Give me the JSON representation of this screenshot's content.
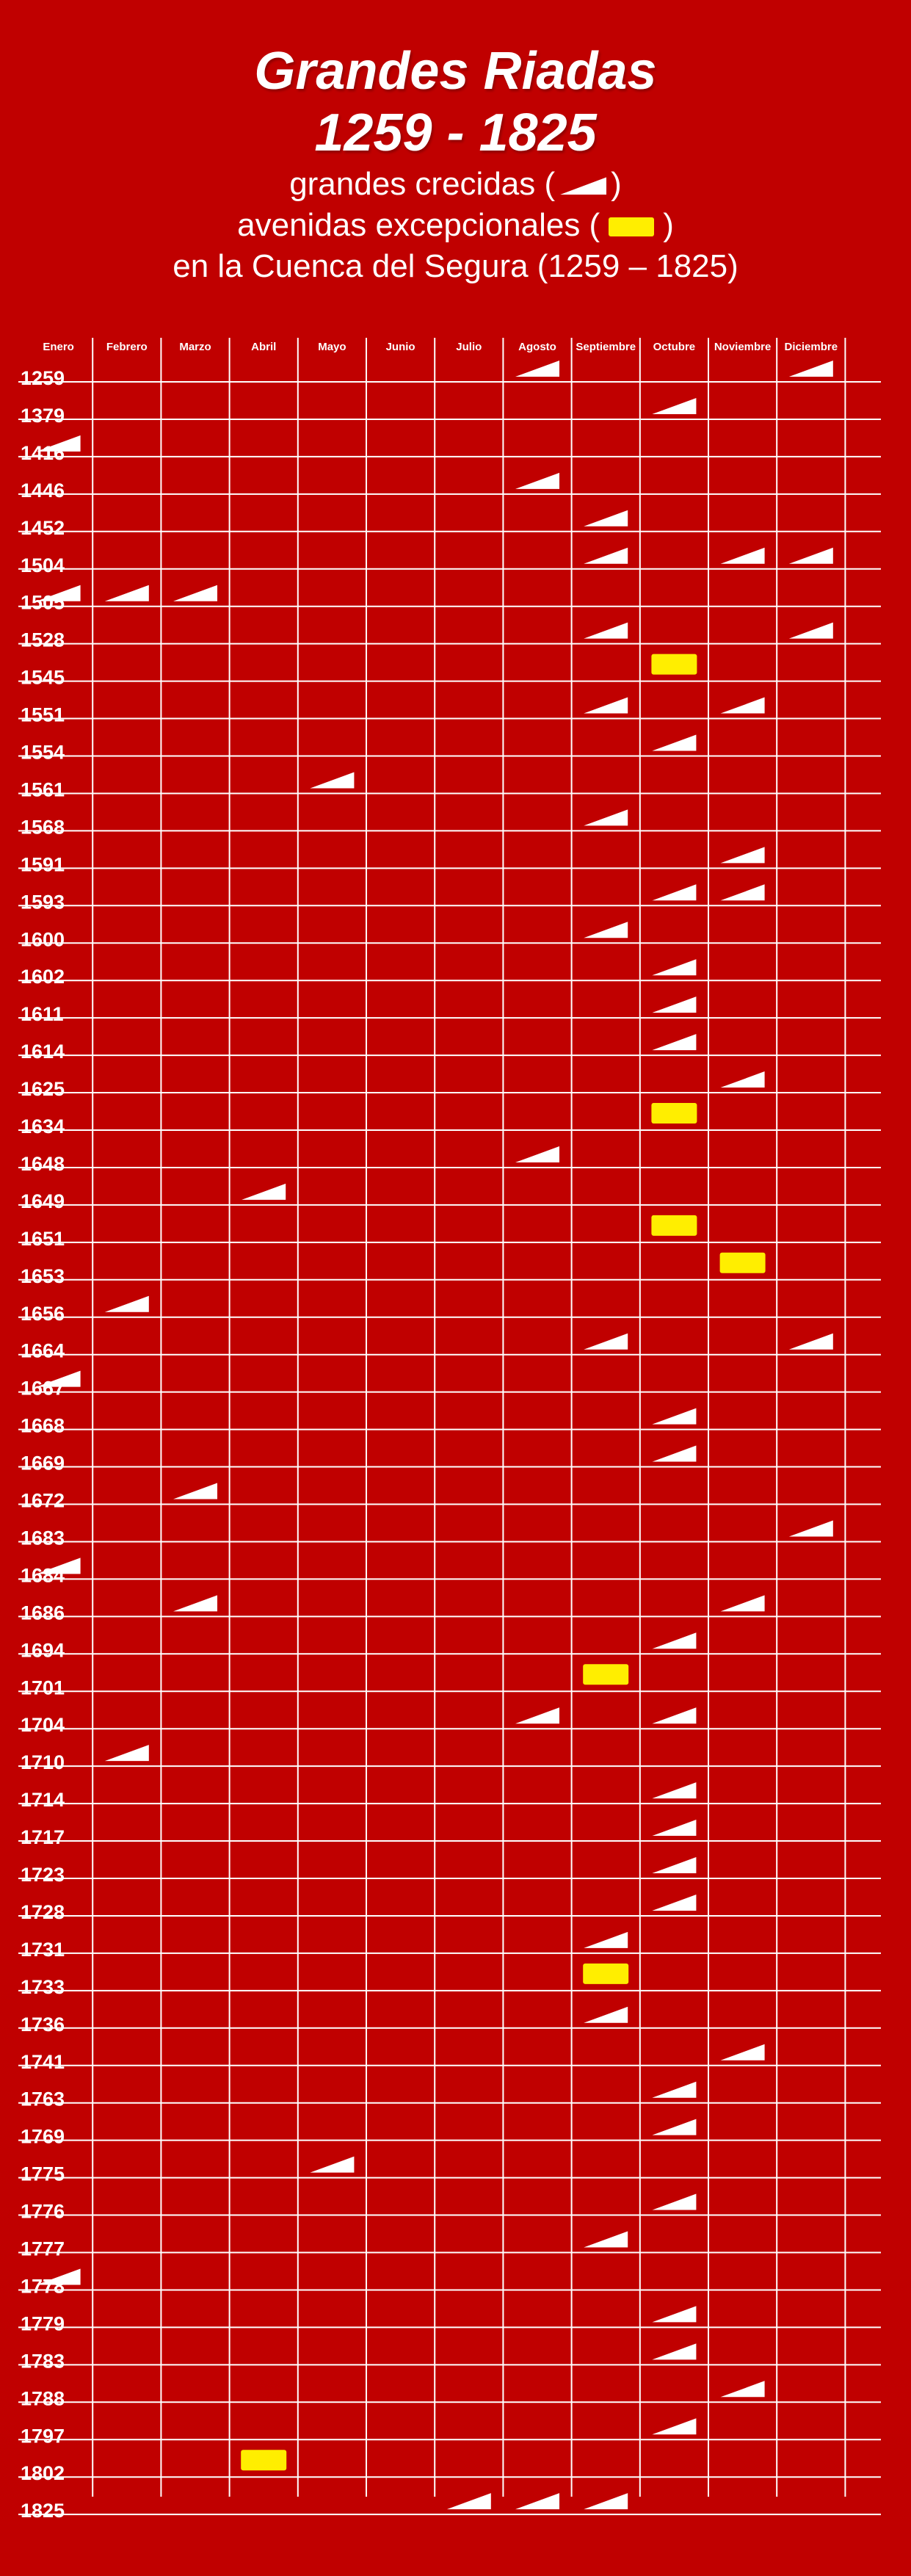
{
  "title_line1": "Grandes Riadas",
  "title_line2": "1259 - 1825",
  "legend": {
    "crecidas_label": "grandes crecidas (",
    "crecidas_close": ")",
    "avenidas_label": "avenidas excepcionales (",
    "avenidas_close": ")",
    "region_label": "en la Cuenca del Segura (1259 – 1825)"
  },
  "colors": {
    "background": "#c00000",
    "crecida": "#ffffff",
    "avenida": "#ffee00",
    "grid": "#ffffff"
  },
  "chart_data": {
    "type": "table",
    "months": [
      "Enero",
      "Febrero",
      "Marzo",
      "Abril",
      "Mayo",
      "Junio",
      "Julio",
      "Agosto",
      "Septiembre",
      "Octubre",
      "Noviembre",
      "Diciembre"
    ],
    "symbols": {
      "crecida": "grandes crecidas",
      "avenida": "avenidas excepcionales"
    },
    "rows": [
      {
        "year": "1259",
        "crecida": [
          8,
          12
        ],
        "avenida": []
      },
      {
        "year": "1379",
        "crecida": [
          10
        ],
        "avenida": []
      },
      {
        "year": "1416",
        "crecida": [
          1
        ],
        "avenida": []
      },
      {
        "year": "1446",
        "crecida": [
          8
        ],
        "avenida": []
      },
      {
        "year": "1452",
        "crecida": [
          9
        ],
        "avenida": []
      },
      {
        "year": "1504",
        "crecida": [
          9,
          11,
          12
        ],
        "avenida": []
      },
      {
        "year": "1505",
        "crecida": [
          1,
          2,
          3
        ],
        "avenida": []
      },
      {
        "year": "1528",
        "crecida": [
          9,
          12
        ],
        "avenida": []
      },
      {
        "year": "1545",
        "crecida": [],
        "avenida": [
          10
        ]
      },
      {
        "year": "1551",
        "crecida": [
          9,
          11
        ],
        "avenida": []
      },
      {
        "year": "1554",
        "crecida": [
          10
        ],
        "avenida": []
      },
      {
        "year": "1561",
        "crecida": [
          5
        ],
        "avenida": []
      },
      {
        "year": "1568",
        "crecida": [
          9
        ],
        "avenida": []
      },
      {
        "year": "1591",
        "crecida": [
          11
        ],
        "avenida": []
      },
      {
        "year": "1593",
        "crecida": [
          10,
          11
        ],
        "avenida": []
      },
      {
        "year": "1600",
        "crecida": [
          9
        ],
        "avenida": []
      },
      {
        "year": "1602",
        "crecida": [
          10
        ],
        "avenida": []
      },
      {
        "year": "1611",
        "crecida": [
          10
        ],
        "avenida": []
      },
      {
        "year": "1614",
        "crecida": [
          10
        ],
        "avenida": []
      },
      {
        "year": "1625",
        "crecida": [
          11
        ],
        "avenida": []
      },
      {
        "year": "1634",
        "crecida": [],
        "avenida": [
          10
        ]
      },
      {
        "year": "1648",
        "crecida": [
          8
        ],
        "avenida": []
      },
      {
        "year": "1649",
        "crecida": [
          4
        ],
        "avenida": []
      },
      {
        "year": "1651",
        "crecida": [],
        "avenida": [
          10
        ]
      },
      {
        "year": "1653",
        "crecida": [],
        "avenida": [
          11
        ]
      },
      {
        "year": "1656",
        "crecida": [
          2
        ],
        "avenida": []
      },
      {
        "year": "1664",
        "crecida": [
          9,
          12
        ],
        "avenida": []
      },
      {
        "year": "1667",
        "crecida": [
          1
        ],
        "avenida": []
      },
      {
        "year": "1668",
        "crecida": [
          10
        ],
        "avenida": []
      },
      {
        "year": "1669",
        "crecida": [
          10
        ],
        "avenida": []
      },
      {
        "year": "1672",
        "crecida": [
          3
        ],
        "avenida": []
      },
      {
        "year": "1683",
        "crecida": [
          12
        ],
        "avenida": []
      },
      {
        "year": "1684",
        "crecida": [
          1
        ],
        "avenida": []
      },
      {
        "year": "1686",
        "crecida": [
          3,
          11
        ],
        "avenida": []
      },
      {
        "year": "1694",
        "crecida": [
          10
        ],
        "avenida": []
      },
      {
        "year": "1701",
        "crecida": [],
        "avenida": [
          9
        ]
      },
      {
        "year": "1704",
        "crecida": [
          8,
          10
        ],
        "avenida": []
      },
      {
        "year": "1710",
        "crecida": [
          2
        ],
        "avenida": []
      },
      {
        "year": "1714",
        "crecida": [
          10
        ],
        "avenida": []
      },
      {
        "year": "1717",
        "crecida": [
          10
        ],
        "avenida": []
      },
      {
        "year": "1723",
        "crecida": [
          10
        ],
        "avenida": []
      },
      {
        "year": "1728",
        "crecida": [
          10
        ],
        "avenida": []
      },
      {
        "year": "1731",
        "crecida": [
          9
        ],
        "avenida": []
      },
      {
        "year": "1733",
        "crecida": [],
        "avenida": [
          9
        ]
      },
      {
        "year": "1736",
        "crecida": [
          9
        ],
        "avenida": []
      },
      {
        "year": "1741",
        "crecida": [
          11
        ],
        "avenida": []
      },
      {
        "year": "1763",
        "crecida": [
          10
        ],
        "avenida": []
      },
      {
        "year": "1769",
        "crecida": [
          10
        ],
        "avenida": []
      },
      {
        "year": "1775",
        "crecida": [
          5
        ],
        "avenida": []
      },
      {
        "year": "1776",
        "crecida": [
          10
        ],
        "avenida": []
      },
      {
        "year": "1777",
        "crecida": [
          9
        ],
        "avenida": []
      },
      {
        "year": "1778",
        "crecida": [
          1
        ],
        "avenida": []
      },
      {
        "year": "1779",
        "crecida": [
          10
        ],
        "avenida": []
      },
      {
        "year": "1783",
        "crecida": [
          10
        ],
        "avenida": []
      },
      {
        "year": "1788",
        "crecida": [
          11
        ],
        "avenida": []
      },
      {
        "year": "1797",
        "crecida": [
          10
        ],
        "avenida": []
      },
      {
        "year": "1802",
        "crecida": [],
        "avenida": [
          4
        ]
      },
      {
        "year": "1825",
        "crecida": [
          7,
          8,
          9
        ],
        "avenida": []
      }
    ]
  }
}
